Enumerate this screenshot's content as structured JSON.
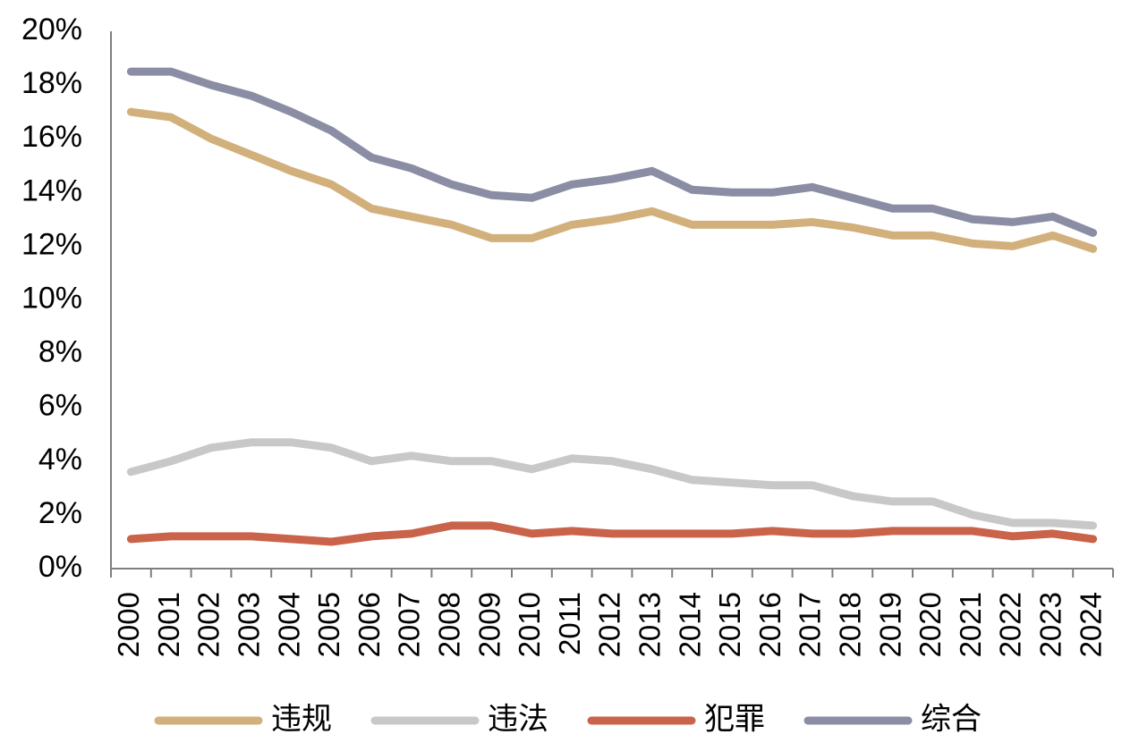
{
  "chart_data": {
    "type": "line",
    "title": "",
    "xlabel": "",
    "ylabel": "",
    "ylim": [
      0,
      20
    ],
    "yticks": [
      "0%",
      "2%",
      "4%",
      "6%",
      "8%",
      "10%",
      "12%",
      "14%",
      "16%",
      "18%",
      "20%"
    ],
    "x": [
      "2000",
      "2001",
      "2002",
      "2003",
      "2004",
      "2005",
      "2006",
      "2007",
      "2008",
      "2009",
      "2010",
      "2011",
      "2012",
      "2013",
      "2014",
      "2015",
      "2016",
      "2017",
      "2018",
      "2019",
      "2020",
      "2021",
      "2022",
      "2023",
      "2024"
    ],
    "legend_position": "bottom",
    "series": [
      {
        "name": "违规",
        "color": "#D2B07C",
        "values": [
          17.0,
          16.8,
          16.0,
          15.4,
          14.8,
          14.3,
          13.4,
          13.1,
          12.8,
          12.3,
          12.3,
          12.8,
          13.0,
          13.3,
          12.8,
          12.8,
          12.8,
          12.9,
          12.7,
          12.4,
          12.4,
          12.1,
          12.0,
          12.4,
          11.9
        ]
      },
      {
        "name": "违法",
        "color": "#C8C8C8",
        "values": [
          3.6,
          4.0,
          4.5,
          4.7,
          4.7,
          4.5,
          4.0,
          4.2,
          4.0,
          4.0,
          3.7,
          4.1,
          4.0,
          3.7,
          3.3,
          3.2,
          3.1,
          3.1,
          2.7,
          2.5,
          2.5,
          2.0,
          1.7,
          1.7,
          1.6
        ]
      },
      {
        "name": "犯罪",
        "color": "#C9634A",
        "values": [
          1.1,
          1.2,
          1.2,
          1.2,
          1.1,
          1.0,
          1.2,
          1.3,
          1.6,
          1.6,
          1.3,
          1.4,
          1.3,
          1.3,
          1.3,
          1.3,
          1.4,
          1.3,
          1.3,
          1.4,
          1.4,
          1.4,
          1.2,
          1.3,
          1.1
        ]
      },
      {
        "name": "综合",
        "color": "#8A8DA4",
        "values": [
          18.5,
          18.5,
          18.0,
          17.6,
          17.0,
          16.3,
          15.3,
          14.9,
          14.3,
          13.9,
          13.8,
          14.3,
          14.5,
          14.8,
          14.1,
          14.0,
          14.0,
          14.2,
          13.8,
          13.4,
          13.4,
          13.0,
          12.9,
          13.1,
          12.5
        ]
      }
    ]
  }
}
